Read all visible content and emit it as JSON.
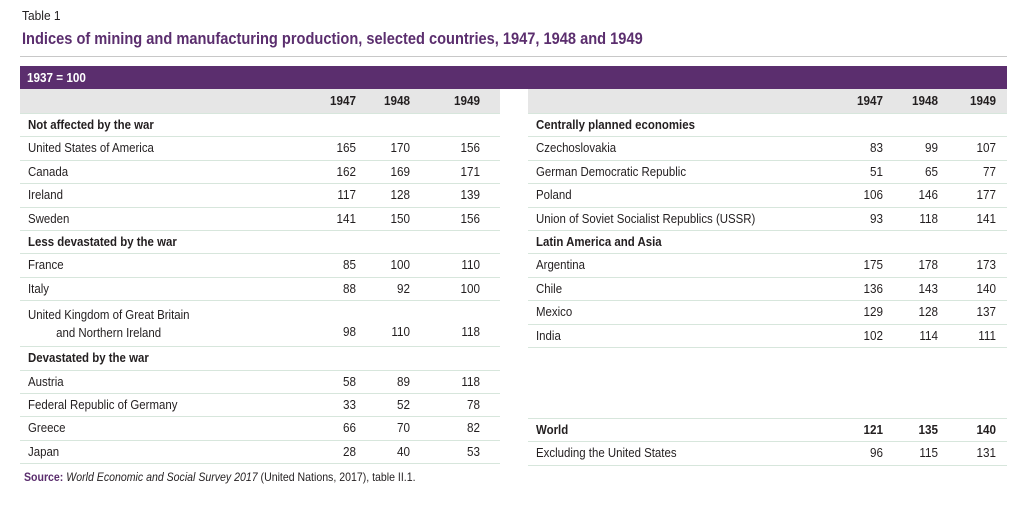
{
  "table_label": "Table 1",
  "title": "Indices of mining and manufacturing production, selected countries, 1947, 1948 and 1949",
  "base": "1937 = 100",
  "years": [
    "1947",
    "1948",
    "1949"
  ],
  "left": [
    {
      "type": "group",
      "name": "Not affected by the war"
    },
    {
      "type": "row",
      "name": "United States of America",
      "values": [
        "165",
        "170",
        "156"
      ]
    },
    {
      "type": "row",
      "name": "Canada",
      "values": [
        "162",
        "169",
        "171"
      ]
    },
    {
      "type": "row",
      "name": "Ireland",
      "values": [
        "117",
        "128",
        "139"
      ]
    },
    {
      "type": "row",
      "name": "Sweden",
      "values": [
        "141",
        "150",
        "156"
      ]
    },
    {
      "type": "group",
      "name": "Less devastated by the war"
    },
    {
      "type": "row",
      "name": "France",
      "values": [
        "85",
        "100",
        "110"
      ]
    },
    {
      "type": "row",
      "name": "Italy",
      "values": [
        "88",
        "92",
        "100"
      ]
    },
    {
      "type": "row2",
      "name": "United Kingdom of Great Britain",
      "name2": "and Northern Ireland",
      "values": [
        "98",
        "110",
        "118"
      ]
    },
    {
      "type": "group",
      "name": "Devastated by the war"
    },
    {
      "type": "row",
      "name": "Austria",
      "values": [
        "58",
        "89",
        "118"
      ]
    },
    {
      "type": "row",
      "name": "Federal Republic of Germany",
      "values": [
        "33",
        "52",
        "78"
      ]
    },
    {
      "type": "row",
      "name": "Greece",
      "values": [
        "66",
        "70",
        "82"
      ]
    },
    {
      "type": "row",
      "name": "Japan",
      "values": [
        "28",
        "40",
        "53"
      ]
    }
  ],
  "right": [
    {
      "type": "group",
      "name": "Centrally planned economies"
    },
    {
      "type": "row",
      "name": "Czechoslovakia",
      "values": [
        "83",
        "99",
        "107"
      ]
    },
    {
      "type": "row",
      "name": "German Democratic Republic",
      "values": [
        "51",
        "65",
        "77"
      ]
    },
    {
      "type": "row",
      "name": "Poland",
      "values": [
        "106",
        "146",
        "177"
      ]
    },
    {
      "type": "row",
      "name": "Union of Soviet Socialist Republics (USSR)",
      "values": [
        "93",
        "118",
        "141"
      ]
    },
    {
      "type": "group",
      "name": "Latin America and Asia"
    },
    {
      "type": "row",
      "name": "Argentina",
      "values": [
        "175",
        "178",
        "173"
      ]
    },
    {
      "type": "row",
      "name": "Chile",
      "values": [
        "136",
        "143",
        "140"
      ]
    },
    {
      "type": "row",
      "name": "Mexico",
      "values": [
        "129",
        "128",
        "137"
      ]
    },
    {
      "type": "row",
      "name": "India",
      "values": [
        "102",
        "114",
        "111"
      ]
    },
    {
      "type": "world",
      "name": "World",
      "values": [
        "121",
        "135",
        "140"
      ]
    },
    {
      "type": "row",
      "name": "Excluding the United States",
      "values": [
        "96",
        "115",
        "131"
      ]
    }
  ],
  "source": {
    "label": "Source:",
    "title": "World Economic and Social Survey 2017",
    "rest": " (United Nations, 2017), table II.1."
  }
}
